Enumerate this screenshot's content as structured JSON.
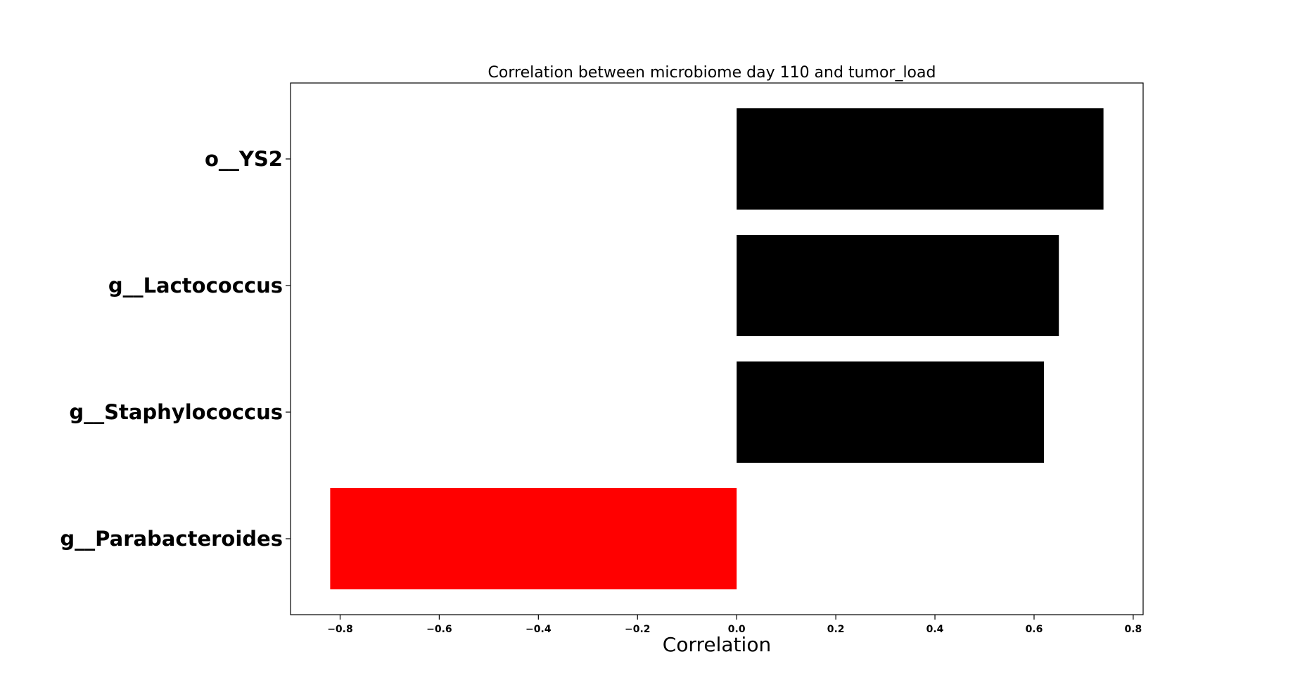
{
  "chart_data": {
    "type": "bar",
    "orientation": "horizontal",
    "title": "Correlation between microbiome day 110 and tumor_load",
    "xlabel": "Correlation",
    "ylabel": "",
    "categories": [
      "o__YS2",
      "g__Lactococcus",
      "g__Staphylococcus",
      "g__Parabacteroides"
    ],
    "values": [
      0.74,
      0.65,
      0.62,
      -0.82
    ],
    "colors": [
      "#000000",
      "#000000",
      "#000000",
      "#ff0000"
    ],
    "xlim": [
      -0.9,
      0.82
    ],
    "xticks": [
      -0.8,
      -0.6,
      -0.4,
      -0.2,
      0.0,
      0.2,
      0.4,
      0.6,
      0.8
    ],
    "xtick_labels": [
      "−0.8",
      "−0.6",
      "−0.4",
      "−0.2",
      "0.0",
      "0.2",
      "0.4",
      "0.6",
      "0.8"
    ],
    "grid": false,
    "legend": "none"
  }
}
